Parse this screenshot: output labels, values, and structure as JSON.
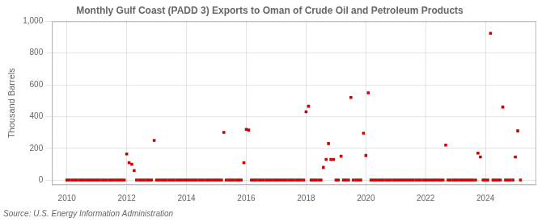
{
  "chart_data": {
    "type": "scatter",
    "title": "Monthly Gulf Coast (PADD 3) Exports to Oman of Crude Oil and Petroleum Products",
    "y_label": "Thousand Barrels",
    "annotations": [
      "Source: U.S. Energy Information Administration"
    ],
    "color": "#cc0000",
    "marker": "square",
    "grid": true,
    "xlim": [
      2009.5,
      2025.7
    ],
    "ylim": [
      -30,
      1000
    ],
    "xticks": [
      2010,
      2012,
      2014,
      2016,
      2018,
      2020,
      2022,
      2024
    ],
    "yticks": [
      0,
      200,
      400,
      600,
      800,
      {
        "value": 1000,
        "label": "1,000"
      }
    ],
    "x": [
      2010.0,
      2010.08,
      2010.17,
      2010.25,
      2010.33,
      2010.42,
      2010.5,
      2010.58,
      2010.67,
      2010.75,
      2010.83,
      2010.92,
      2011.0,
      2011.08,
      2011.17,
      2011.25,
      2011.33,
      2011.42,
      2011.5,
      2011.58,
      2011.67,
      2011.75,
      2011.83,
      2011.92,
      2012.0,
      2012.08,
      2012.17,
      2012.25,
      2012.33,
      2012.42,
      2012.5,
      2012.58,
      2012.67,
      2012.75,
      2012.83,
      2012.92,
      2013.0,
      2013.08,
      2013.17,
      2013.25,
      2013.33,
      2013.42,
      2013.5,
      2013.58,
      2013.67,
      2013.75,
      2013.83,
      2013.92,
      2014.0,
      2014.08,
      2014.17,
      2014.25,
      2014.33,
      2014.42,
      2014.5,
      2014.58,
      2014.67,
      2014.75,
      2014.83,
      2014.92,
      2015.0,
      2015.08,
      2015.17,
      2015.25,
      2015.33,
      2015.42,
      2015.5,
      2015.58,
      2015.67,
      2015.75,
      2015.83,
      2015.92,
      2016.0,
      2016.08,
      2016.17,
      2016.25,
      2016.33,
      2016.42,
      2016.5,
      2016.58,
      2016.67,
      2016.75,
      2016.83,
      2016.92,
      2017.0,
      2017.08,
      2017.17,
      2017.25,
      2017.33,
      2017.42,
      2017.5,
      2017.58,
      2017.67,
      2017.75,
      2017.83,
      2017.92,
      2018.0,
      2018.08,
      2018.17,
      2018.25,
      2018.33,
      2018.42,
      2018.5,
      2018.58,
      2018.67,
      2018.75,
      2018.83,
      2018.92,
      2019.0,
      2019.08,
      2019.17,
      2019.25,
      2019.33,
      2019.42,
      2019.5,
      2019.58,
      2019.67,
      2019.75,
      2019.83,
      2019.92,
      2020.0,
      2020.08,
      2020.17,
      2020.25,
      2020.33,
      2020.42,
      2020.5,
      2020.58,
      2020.67,
      2020.75,
      2020.83,
      2020.92,
      2021.0,
      2021.08,
      2021.17,
      2021.25,
      2021.33,
      2021.42,
      2021.5,
      2021.58,
      2021.67,
      2021.75,
      2021.83,
      2021.92,
      2022.0,
      2022.08,
      2022.17,
      2022.25,
      2022.33,
      2022.42,
      2022.5,
      2022.58,
      2022.67,
      2022.75,
      2022.83,
      2022.92,
      2023.0,
      2023.08,
      2023.17,
      2023.25,
      2023.33,
      2023.42,
      2023.5,
      2023.58,
      2023.67,
      2023.75,
      2023.83,
      2023.92,
      2024.0,
      2024.08,
      2024.17,
      2024.25,
      2024.33,
      2024.42,
      2024.5,
      2024.58,
      2024.67,
      2024.75,
      2024.83,
      2024.92,
      2025.0,
      2025.08,
      2025.17
    ],
    "values": [
      0,
      0,
      0,
      0,
      0,
      0,
      0,
      0,
      0,
      0,
      0,
      0,
      0,
      0,
      0,
      0,
      0,
      0,
      0,
      0,
      0,
      0,
      0,
      0,
      165,
      110,
      100,
      60,
      0,
      0,
      0,
      0,
      0,
      0,
      0,
      250,
      0,
      0,
      0,
      0,
      0,
      0,
      0,
      0,
      0,
      0,
      0,
      0,
      0,
      0,
      0,
      0,
      0,
      0,
      0,
      0,
      0,
      0,
      0,
      0,
      0,
      0,
      0,
      300,
      0,
      0,
      0,
      0,
      0,
      0,
      0,
      110,
      320,
      315,
      0,
      0,
      0,
      0,
      0,
      0,
      0,
      0,
      0,
      0,
      0,
      0,
      0,
      0,
      0,
      0,
      0,
      0,
      0,
      0,
      0,
      0,
      430,
      465,
      0,
      0,
      0,
      0,
      0,
      80,
      130,
      230,
      130,
      130,
      0,
      0,
      150,
      0,
      0,
      0,
      520,
      0,
      0,
      0,
      0,
      295,
      155,
      550,
      0,
      0,
      0,
      0,
      0,
      0,
      0,
      0,
      0,
      0,
      0,
      0,
      0,
      0,
      0,
      0,
      0,
      0,
      0,
      0,
      0,
      0,
      0,
      0,
      0,
      0,
      0,
      0,
      0,
      0,
      220,
      0,
      0,
      0,
      0,
      0,
      0,
      0,
      0,
      0,
      0,
      0,
      0,
      170,
      145,
      0,
      0,
      0,
      925,
      0,
      0,
      0,
      0,
      460,
      0,
      0,
      0,
      0,
      145,
      310,
      0
    ]
  }
}
